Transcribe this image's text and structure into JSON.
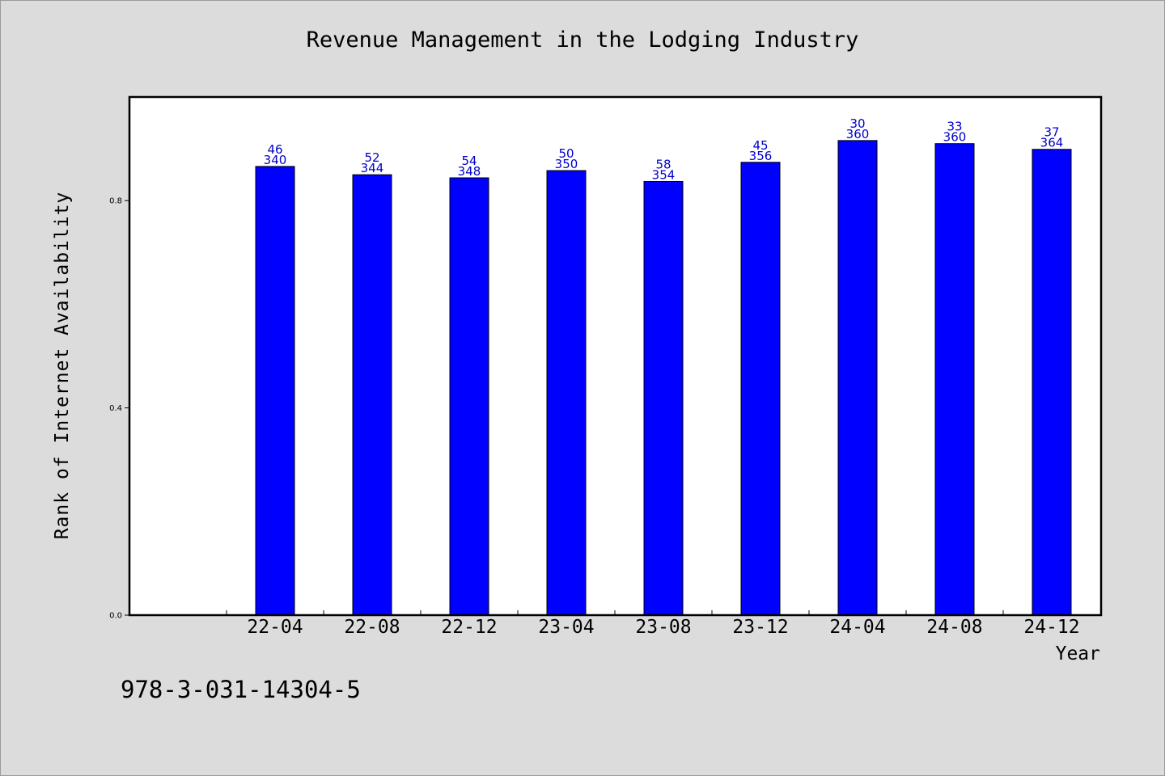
{
  "chart_data": {
    "type": "bar",
    "title": "Revenue Management in the Lodging Industry",
    "xlabel": "Year",
    "ylabel": "Rank of Internet Availability",
    "ylim": [
      0,
      1.0
    ],
    "yticks": [
      "0.0",
      "0.4",
      "0.8"
    ],
    "ytick_values": [
      0.0,
      0.4,
      0.8
    ],
    "categories": [
      "22-04",
      "22-08",
      "22-12",
      "23-04",
      "23-08",
      "23-12",
      "24-04",
      "24-08",
      "24-12"
    ],
    "values": [
      0.866,
      0.85,
      0.844,
      0.858,
      0.837,
      0.874,
      0.916,
      0.91,
      0.899
    ],
    "label_top": [
      "46",
      "52",
      "54",
      "50",
      "58",
      "45",
      "30",
      "33",
      "37"
    ],
    "label_bottom": [
      "340",
      "344",
      "348",
      "350",
      "354",
      "356",
      "360",
      "360",
      "364"
    ],
    "bar_color": "#0000ff",
    "label_color": "#0000cc",
    "grid": false,
    "legend": "none"
  },
  "footer": {
    "isbn": "978-3-031-14304-5"
  }
}
